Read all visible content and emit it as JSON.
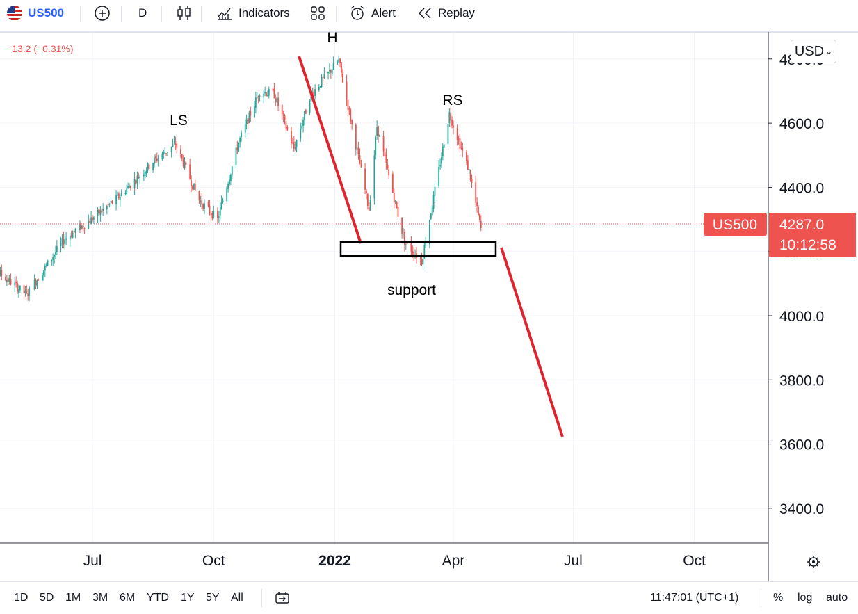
{
  "toolbar": {
    "symbol": "US500",
    "interval": "D",
    "indicators_label": "Indicators",
    "alert_label": "Alert",
    "replay_label": "Replay",
    "icons": [
      "us-flag-icon",
      "add-compare-icon",
      "candles-icon",
      "indicators-icon",
      "templates-icon",
      "alert-icon",
      "replay-icon"
    ]
  },
  "legend": {
    "change": "−13.2 (−0.31%)"
  },
  "currency": "USD",
  "price_axis": {
    "ticks": [
      "4800.0",
      "4600.0",
      "4400.0",
      "4200.0",
      "4000.0",
      "3800.0",
      "3600.0",
      "3400.0"
    ],
    "symbol_tag": "US500",
    "last_price": "4287.0",
    "countdown": "10:12:58",
    "tag_color": "#ef5350"
  },
  "time_axis": {
    "labels": [
      "Jul",
      "Oct",
      "2022",
      "Apr",
      "Jul",
      "Oct"
    ]
  },
  "annotations": {
    "ls": "LS",
    "h": "H",
    "rs": "RS",
    "support": "support"
  },
  "bottom_bar": {
    "ranges": [
      "1D",
      "5D",
      "1M",
      "3M",
      "6M",
      "YTD",
      "1Y",
      "5Y",
      "All"
    ],
    "time": "11:47:01 (UTC+1)",
    "percent": "%",
    "log": "log",
    "auto": "auto"
  },
  "colors": {
    "up": "#26a69a",
    "down": "#ef5350",
    "drawing": "#e0242f",
    "accent": "#2962ff"
  },
  "chart_data": {
    "type": "candlestick",
    "title": "",
    "xlabel": "",
    "ylabel": "",
    "x_ticks": [
      "Jul",
      "Oct",
      "2022",
      "Apr",
      "Jul",
      "Oct"
    ],
    "ylim": [
      3300,
      4880
    ],
    "y_ticks": [
      3400,
      3600,
      3800,
      4000,
      4200,
      4400,
      4600,
      4800
    ],
    "last_price": 4287.0,
    "grid": true,
    "pattern_points": [
      {
        "label": "LS",
        "date": "2021-09-02",
        "close": 4537
      },
      {
        "label": "H",
        "date": "2022-01-04",
        "close": 4793
      },
      {
        "label": "RS",
        "date": "2022-03-29",
        "close": 4631
      },
      {
        "label": "support",
        "value_range": [
          4180,
          4225
        ]
      }
    ],
    "projection_lines": [
      {
        "from": {
          "date": "2021-11-22",
          "value": 4780
        },
        "to": {
          "date": "2022-01-28",
          "value": 4225
        }
      },
      {
        "from": {
          "date": "2022-04-26",
          "value": 4210
        },
        "to": {
          "date": "2022-06-17",
          "value": 3625
        }
      }
    ],
    "series": [
      {
        "trend_path": [
          [
            "2021-04-07",
            4180
          ],
          [
            "2021-05-12",
            4065
          ],
          [
            "2021-06-10",
            4240
          ],
          [
            "2021-06-30",
            4300
          ],
          [
            "2021-07-21",
            4370
          ],
          [
            "2021-08-16",
            4480
          ],
          [
            "2021-09-02",
            4535
          ],
          [
            "2021-09-20",
            4360
          ],
          [
            "2021-10-04",
            4300
          ],
          [
            "2021-10-20",
            4540
          ],
          [
            "2021-11-05",
            4700
          ],
          [
            "2021-11-16",
            4690
          ],
          [
            "2021-12-01",
            4520
          ],
          [
            "2021-12-14",
            4690
          ],
          [
            "2022-01-04",
            4795
          ],
          [
            "2022-01-27",
            4330
          ],
          [
            "2022-02-02",
            4590
          ],
          [
            "2022-02-23",
            4230
          ],
          [
            "2022-03-08",
            4170
          ],
          [
            "2022-03-29",
            4630
          ],
          [
            "2022-04-13",
            4450
          ],
          [
            "2022-04-22",
            4270
          ]
        ]
      }
    ]
  }
}
